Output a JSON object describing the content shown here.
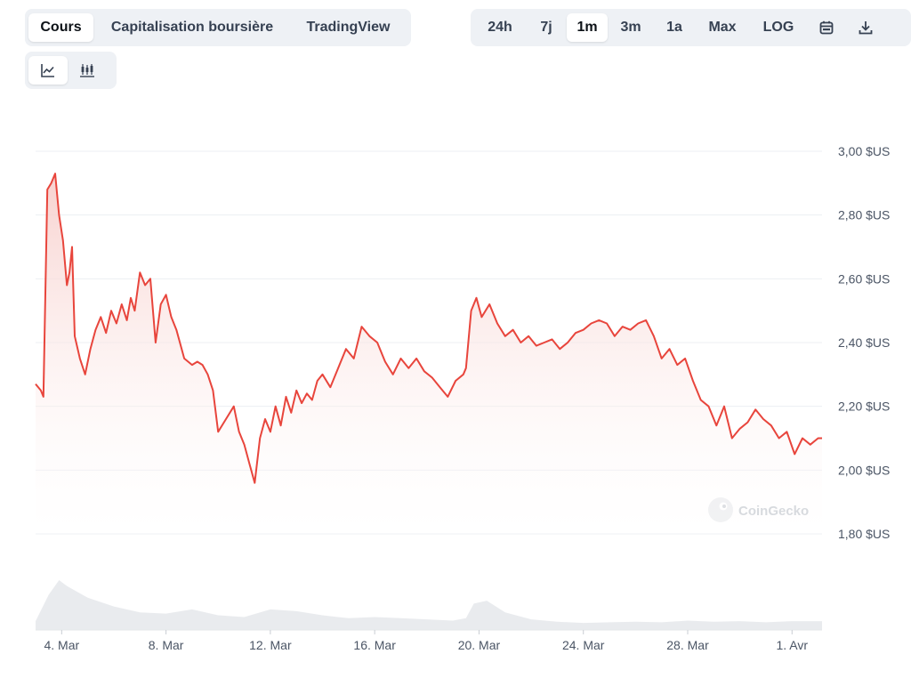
{
  "tabs": {
    "main": [
      {
        "label": "Cours",
        "active": true
      },
      {
        "label": "Capitalisation boursière",
        "active": false
      },
      {
        "label": "TradingView",
        "active": false
      }
    ],
    "range": [
      {
        "label": "24h",
        "active": false
      },
      {
        "label": "7j",
        "active": false
      },
      {
        "label": "1m",
        "active": true
      },
      {
        "label": "3m",
        "active": false
      },
      {
        "label": "1a",
        "active": false
      },
      {
        "label": "Max",
        "active": false
      },
      {
        "label": "LOG",
        "active": false
      }
    ],
    "range_icons": [
      "calendar-icon",
      "download-icon"
    ],
    "chart_type_icons": [
      "line-chart-icon",
      "candlestick-icon"
    ]
  },
  "watermark": "CoinGecko",
  "colors": {
    "line": "#e8453c",
    "area_top": "#f7cfcc",
    "grid": "#eceff3",
    "volume": "#e5e7eb",
    "active_tab_bg": "#ffffff",
    "tab_group_bg": "#eef1f5"
  },
  "chart_data": {
    "type": "area",
    "title": "",
    "xlabel": "",
    "ylabel": "",
    "x_ticks": [
      "4. Mar",
      "8. Mar",
      "12. Mar",
      "16. Mar",
      "20. Mar",
      "24. Mar",
      "28. Mar",
      "1. Avr"
    ],
    "y_ticks": [
      "1,80 $US",
      "2,00 $US",
      "2,20 $US",
      "2,40 $US",
      "2,60 $US",
      "2,80 $US",
      "3,00 $US"
    ],
    "ylim": [
      1.8,
      3.0
    ],
    "xlim": [
      3.0,
      33.15
    ],
    "grid": true,
    "series": [
      {
        "x": [
          3.0,
          3.2,
          3.3,
          3.45,
          3.6,
          3.75,
          3.9,
          4.05,
          4.2,
          4.3,
          4.4,
          4.5,
          4.7,
          4.9,
          5.1,
          5.3,
          5.5,
          5.7,
          5.9,
          6.1,
          6.3,
          6.5,
          6.65,
          6.8,
          7.0,
          7.2,
          7.4,
          7.6,
          7.8,
          8.0,
          8.2,
          8.4,
          8.7,
          9.0,
          9.2,
          9.4,
          9.6,
          9.8,
          10.0,
          10.3,
          10.6,
          10.8,
          11.0,
          11.2,
          11.4,
          11.6,
          11.8,
          12.0,
          12.2,
          12.4,
          12.6,
          12.8,
          13.0,
          13.2,
          13.4,
          13.6,
          13.8,
          14.0,
          14.3,
          14.6,
          14.9,
          15.2,
          15.5,
          15.8,
          16.1,
          16.4,
          16.7,
          17.0,
          17.3,
          17.6,
          17.9,
          18.2,
          18.5,
          18.8,
          19.1,
          19.4,
          19.5,
          19.7,
          19.9,
          20.1,
          20.4,
          20.7,
          21.0,
          21.3,
          21.6,
          21.9,
          22.2,
          22.5,
          22.8,
          23.1,
          23.4,
          23.7,
          24.0,
          24.3,
          24.6,
          24.9,
          25.2,
          25.5,
          25.8,
          26.1,
          26.4,
          26.7,
          27.0,
          27.3,
          27.6,
          27.9,
          28.2,
          28.5,
          28.8,
          29.1,
          29.4,
          29.7,
          30.0,
          30.3,
          30.6,
          30.9,
          31.2,
          31.5,
          31.8,
          32.1,
          32.4,
          32.7,
          33.0,
          33.15
        ],
        "values": [
          2.27,
          2.25,
          2.23,
          2.88,
          2.9,
          2.93,
          2.8,
          2.72,
          2.58,
          2.62,
          2.7,
          2.42,
          2.35,
          2.3,
          2.38,
          2.44,
          2.48,
          2.43,
          2.5,
          2.46,
          2.52,
          2.47,
          2.54,
          2.5,
          2.62,
          2.58,
          2.6,
          2.4,
          2.52,
          2.55,
          2.48,
          2.44,
          2.35,
          2.33,
          2.34,
          2.33,
          2.3,
          2.25,
          2.12,
          2.16,
          2.2,
          2.12,
          2.08,
          2.02,
          1.96,
          2.1,
          2.16,
          2.12,
          2.2,
          2.14,
          2.23,
          2.18,
          2.25,
          2.21,
          2.24,
          2.22,
          2.28,
          2.3,
          2.26,
          2.32,
          2.38,
          2.35,
          2.45,
          2.42,
          2.4,
          2.34,
          2.3,
          2.35,
          2.32,
          2.35,
          2.31,
          2.29,
          2.26,
          2.23,
          2.28,
          2.3,
          2.32,
          2.5,
          2.54,
          2.48,
          2.52,
          2.46,
          2.42,
          2.44,
          2.4,
          2.42,
          2.39,
          2.4,
          2.41,
          2.38,
          2.4,
          2.43,
          2.44,
          2.46,
          2.47,
          2.46,
          2.42,
          2.45,
          2.44,
          2.46,
          2.47,
          2.42,
          2.35,
          2.38,
          2.33,
          2.35,
          2.28,
          2.22,
          2.2,
          2.14,
          2.2,
          2.1,
          2.13,
          2.15,
          2.19,
          2.16,
          2.14,
          2.1,
          2.12,
          2.05,
          2.1,
          2.08,
          2.1,
          2.1
        ]
      }
    ],
    "volume": {
      "x": [
        3.0,
        3.5,
        3.9,
        4.2,
        5.0,
        6.0,
        7.0,
        8.0,
        9.0,
        10.0,
        11.0,
        12.0,
        13.0,
        14.0,
        15.0,
        16.0,
        17.0,
        18.0,
        19.0,
        19.5,
        19.8,
        20.3,
        21.0,
        22.0,
        23.0,
        24.0,
        25.0,
        26.0,
        27.0,
        28.0,
        29.0,
        30.0,
        31.0,
        32.0,
        33.15
      ],
      "values": [
        0.15,
        0.6,
        0.85,
        0.75,
        0.55,
        0.4,
        0.3,
        0.28,
        0.35,
        0.25,
        0.22,
        0.35,
        0.32,
        0.25,
        0.2,
        0.22,
        0.2,
        0.18,
        0.16,
        0.2,
        0.45,
        0.5,
        0.3,
        0.18,
        0.14,
        0.12,
        0.13,
        0.14,
        0.13,
        0.16,
        0.14,
        0.15,
        0.13,
        0.15,
        0.15
      ]
    }
  }
}
